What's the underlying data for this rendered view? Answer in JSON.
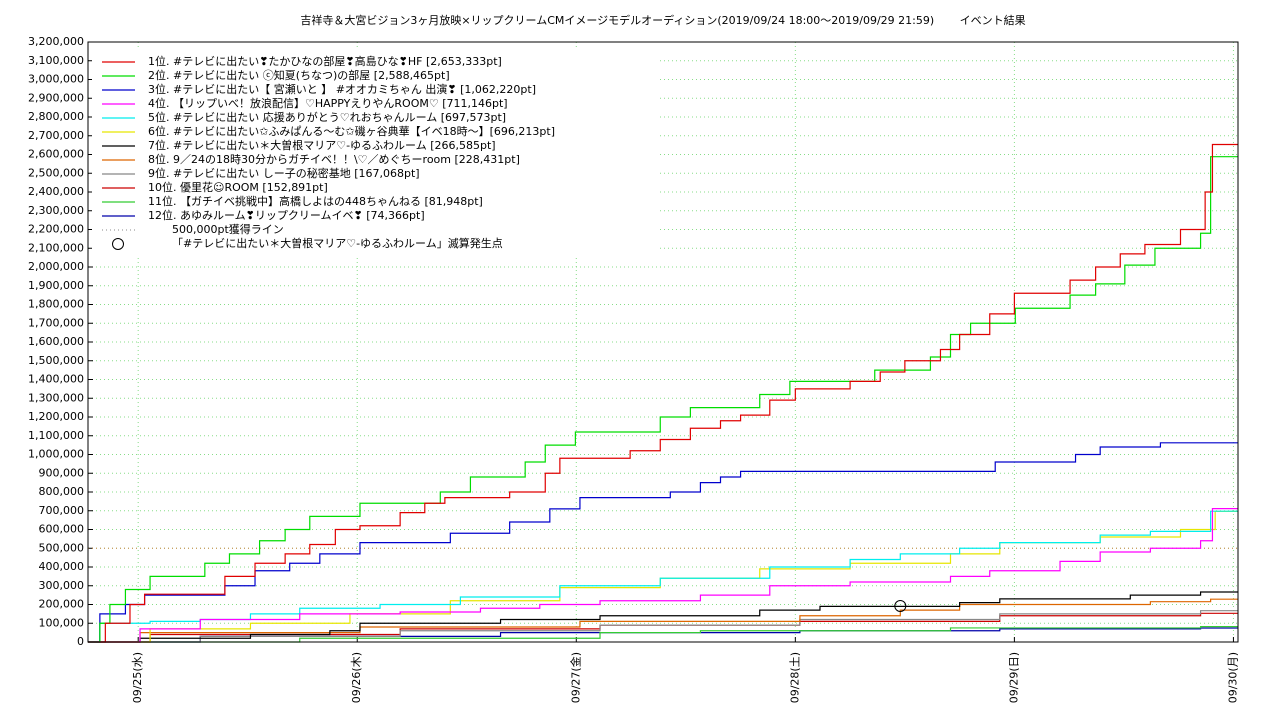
{
  "chart_data": {
    "type": "step-line",
    "title": "吉祥寺＆大宮ビジョン3ヶ月放映×リップクリームCMイメージモデルオーディション(2019/09/24 18:00～2019/09/29 21:59)　　 イベント結果",
    "xlim": [
      0.5,
      126.5
    ],
    "xticks": [
      {
        "value": 6,
        "label": "09/25(水)"
      },
      {
        "value": 30,
        "label": "09/26(木)"
      },
      {
        "value": 54,
        "label": "09/27(金)"
      },
      {
        "value": 78,
        "label": "09/28(土)"
      },
      {
        "value": 102,
        "label": "09/29(日)"
      },
      {
        "value": 126,
        "label": "09/30(月)"
      }
    ],
    "ylim": [
      0,
      3200000
    ],
    "yticks": [
      {
        "value": 0,
        "label": "0"
      },
      {
        "value": 100000,
        "label": "100,000"
      },
      {
        "value": 200000,
        "label": "200,000"
      },
      {
        "value": 300000,
        "label": "300,000"
      },
      {
        "value": 400000,
        "label": "400,000"
      },
      {
        "value": 500000,
        "label": "500,000"
      },
      {
        "value": 600000,
        "label": "600,000"
      },
      {
        "value": 700000,
        "label": "700,000"
      },
      {
        "value": 800000,
        "label": "800,000"
      },
      {
        "value": 900000,
        "label": "900,000"
      },
      {
        "value": 1000000,
        "label": "1,000,000"
      },
      {
        "value": 1100000,
        "label": "1,100,000"
      },
      {
        "value": 1200000,
        "label": "1,200,000"
      },
      {
        "value": 1300000,
        "label": "1,300,000"
      },
      {
        "value": 1400000,
        "label": "1,400,000"
      },
      {
        "value": 1500000,
        "label": "1,500,000"
      },
      {
        "value": 1600000,
        "label": "1,600,000"
      },
      {
        "value": 1700000,
        "label": "1,700,000"
      },
      {
        "value": 1800000,
        "label": "1,800,000"
      },
      {
        "value": 1900000,
        "label": "1,900,000"
      },
      {
        "value": 2000000,
        "label": "2,000,000"
      },
      {
        "value": 2100000,
        "label": "2,100,000"
      },
      {
        "value": 2200000,
        "label": "2,200,000"
      },
      {
        "value": 2300000,
        "label": "2,300,000"
      },
      {
        "value": 2400000,
        "label": "2,400,000"
      },
      {
        "value": 2500000,
        "label": "2,500,000"
      },
      {
        "value": 2600000,
        "label": "2,600,000"
      },
      {
        "value": 2700000,
        "label": "2,700,000"
      },
      {
        "value": 2800000,
        "label": "2,800,000"
      },
      {
        "value": 2900000,
        "label": "2,900,000"
      },
      {
        "value": 3000000,
        "label": "3,000,000"
      },
      {
        "value": 3100000,
        "label": "3,100,000"
      },
      {
        "value": 3200000,
        "label": "3,200,000"
      }
    ],
    "grid": true,
    "legend": "top-left",
    "series": [
      {
        "name": "1位. #テレビに出たい❣たかひなの部屋❣高島ひな❣HF [2,653,333pt]",
        "color": "#e00000",
        "x": [
          0.5,
          2.4,
          5.1,
          6.7,
          15.5,
          18.8,
          22.1,
          24.8,
          27.6,
          30.3,
          34.7,
          37.4,
          39.6,
          46.7,
          50.6,
          52.2,
          59.9,
          63.2,
          66.5,
          69.8,
          72,
          75.2,
          78,
          84,
          87.3,
          90,
          93.9,
          96,
          99.3,
          102,
          108.1,
          110.9,
          113.6,
          116.3,
          120.2,
          122.9,
          123.7
        ],
        "values": [
          0,
          100000,
          200000,
          255000,
          350000,
          420000,
          470000,
          520000,
          600000,
          620000,
          690000,
          740000,
          770000,
          800000,
          900000,
          980000,
          1020000,
          1080000,
          1140000,
          1180000,
          1210000,
          1290000,
          1350000,
          1390000,
          1440000,
          1500000,
          1560000,
          1640000,
          1750000,
          1860000,
          1930000,
          2000000,
          2070000,
          2120000,
          2200000,
          2400000,
          2653333
        ]
      },
      {
        "name": "2位. #テレビに出たい ⓒ知夏(ちなつ)の部屋 [2,588,465pt]",
        "color": "#00dd00",
        "x": [
          0.5,
          1.8,
          2.9,
          4.6,
          7.3,
          13.3,
          16,
          19.3,
          22.1,
          24.8,
          30.3,
          39.1,
          42.4,
          48.4,
          50.6,
          53.9,
          63.2,
          66.5,
          74.1,
          77.4,
          86.7,
          92.8,
          95,
          97.2,
          102.1,
          108.1,
          110.9,
          114.1,
          117.4,
          122.4,
          123.5
        ],
        "values": [
          0,
          100000,
          200000,
          280000,
          350000,
          420000,
          470000,
          540000,
          600000,
          670000,
          740000,
          800000,
          880000,
          960000,
          1050000,
          1120000,
          1200000,
          1250000,
          1320000,
          1390000,
          1450000,
          1520000,
          1640000,
          1700000,
          1780000,
          1850000,
          1910000,
          2010000,
          2100000,
          2180000,
          2588465
        ]
      },
      {
        "name": "3位. #テレビに出たい【 宮瀬いと 】 #オオカミちゃん 出演❣ [1,062,220pt]",
        "color": "#0000cc",
        "x": [
          0.5,
          1.8,
          4.6,
          6.7,
          15.5,
          18.8,
          22.6,
          25.9,
          30.3,
          40.2,
          46.7,
          51.1,
          54.4,
          64.3,
          67.6,
          69.8,
          72,
          99.9,
          108.7,
          111.4,
          118
        ],
        "values": [
          0,
          150000,
          200000,
          250000,
          300000,
          380000,
          420000,
          470000,
          530000,
          580000,
          640000,
          710000,
          770000,
          800000,
          850000,
          880000,
          910000,
          960000,
          1000000,
          1040000,
          1062220
        ]
      },
      {
        "name": "4位. 【リップいべ！放浪配信】♡HAPPYえりやんROOM♡ [711,146pt]",
        "color": "#ff00ff",
        "x": [
          0.5,
          6.2,
          12.8,
          23.7,
          34.7,
          43.5,
          50,
          56.6,
          67.6,
          75.2,
          84,
          95,
          99.3,
          107,
          111.4,
          116.9,
          122.4,
          123.7
        ],
        "values": [
          0,
          70000,
          120000,
          150000,
          160000,
          180000,
          200000,
          220000,
          250000,
          300000,
          320000,
          350000,
          380000,
          430000,
          480000,
          500000,
          540000,
          711146
        ]
      },
      {
        "name": "5位. #テレビに出たい 応援ありがとう♡れおちゃんルーム [697,573pt]",
        "color": "#00eeee",
        "x": [
          0.5,
          1.8,
          7.3,
          12.8,
          18.3,
          23.7,
          32.5,
          41.3,
          52.2,
          63.2,
          75.2,
          84,
          89.5,
          96,
          100.4,
          111.4,
          116.9,
          123.5
        ],
        "values": [
          0,
          100000,
          110000,
          120000,
          150000,
          180000,
          200000,
          240000,
          300000,
          340000,
          400000,
          440000,
          470000,
          500000,
          530000,
          570000,
          590000,
          697573
        ]
      },
      {
        "name": "6位. #テレビに出たい✩ふみぱんる〜む✩磯ヶ谷典華【イベ18時〜】[696,213pt]",
        "color": "#e6e600",
        "x": [
          0.5,
          7.3,
          18.3,
          29.2,
          40.2,
          52.2,
          63.2,
          74.1,
          84,
          95,
          100.4,
          111.4,
          120.2,
          124
        ],
        "values": [
          0,
          70000,
          100000,
          150000,
          220000,
          290000,
          340000,
          390000,
          420000,
          470000,
          530000,
          560000,
          600000,
          696213
        ]
      },
      {
        "name": "7位. #テレビに出たい＊大曽根マリア♡-ゆるふわルーム [266,585pt]",
        "color": "#000000",
        "x": [
          0.5,
          6.2,
          18.3,
          27,
          30.3,
          45.7,
          56.6,
          74.1,
          80.7,
          96,
          100.4,
          114.7,
          122.4
        ],
        "values": [
          0,
          20000,
          40000,
          60000,
          100000,
          120000,
          140000,
          170000,
          190000,
          210000,
          230000,
          250000,
          266585
        ]
      },
      {
        "name": "8位. 9／24の18時30分からガチイベ！！\\♡／めぐちーroom [228,431pt]",
        "color": "#dd6600",
        "x": [
          0.5,
          6.2,
          30.3,
          54.4,
          78.5,
          89.5,
          96,
          116.9,
          123.5
        ],
        "values": [
          0,
          50000,
          80000,
          110000,
          140000,
          170000,
          200000,
          215000,
          228431
        ]
      },
      {
        "name": "9位. #テレビに出たい しー子の秘密基地 [167,068pt]",
        "color": "#888888",
        "x": [
          0.5,
          12.8,
          34.7,
          56.6,
          78.5,
          100.4,
          122.4
        ],
        "values": [
          0,
          30000,
          60000,
          90000,
          120000,
          150000,
          167068
        ]
      },
      {
        "name": "10位. 優里花☺ROOM [152,891pt]",
        "color": "#cc0000",
        "x": [
          0.5,
          7.3,
          34.7,
          56.6,
          78.5,
          100.4,
          122.4
        ],
        "values": [
          0,
          40000,
          70000,
          90000,
          110000,
          140000,
          152891
        ]
      },
      {
        "name": "11位. 【ガチイベ挑戦中】高橋しよはの448ちゃんねる [81,948pt]",
        "color": "#33cc33",
        "x": [
          0.5,
          23.7,
          56.6,
          67.6,
          95,
          122.4
        ],
        "values": [
          0,
          20000,
          50000,
          60000,
          75000,
          81948
        ]
      },
      {
        "name": "12位. あゆみルーム❣リップクリームイベ❣ [74,366pt]",
        "color": "#0000aa",
        "x": [
          0.5,
          12.8,
          45.7,
          78.5,
          100.4,
          122.4
        ],
        "values": [
          0,
          30000,
          50000,
          60000,
          70000,
          74366
        ]
      }
    ],
    "reference_line": {
      "name": "500,000pt獲得ライン",
      "value": 500000,
      "color": "#cc8844"
    },
    "marker": {
      "name": "「#テレビに出たい＊大曽根マリア♡-ゆるふわルーム」滅算発生点",
      "x": 89.5,
      "value": 192000
    }
  }
}
